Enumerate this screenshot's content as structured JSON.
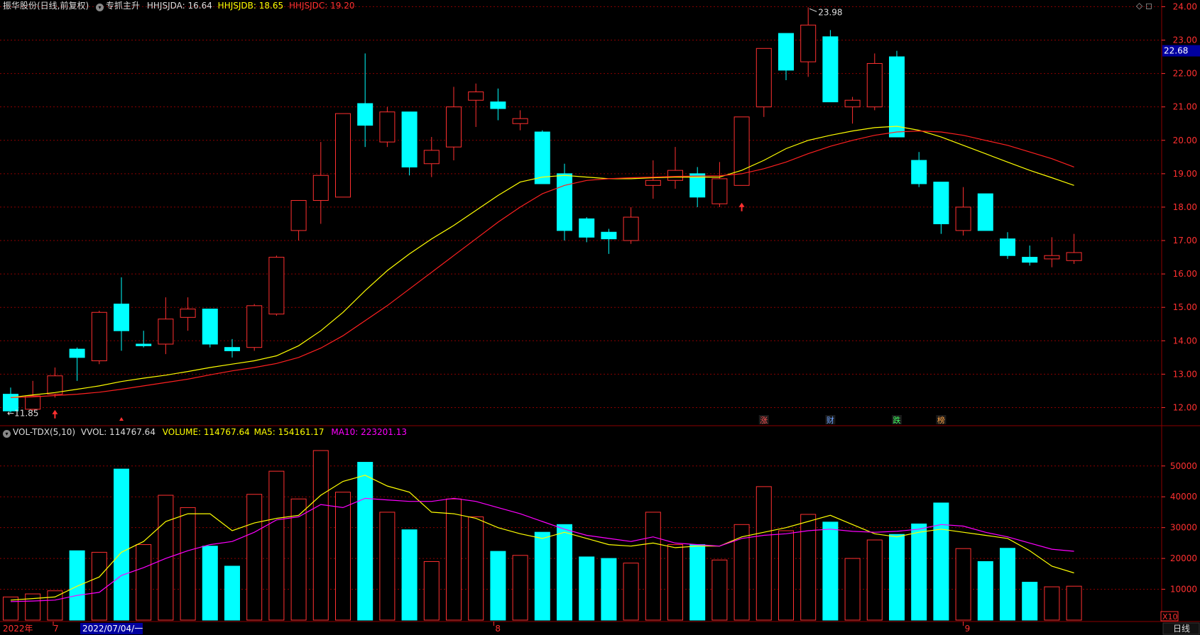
{
  "header": {
    "stock_title": "振华股份(日线,前复权)",
    "indicator_name": "专抓主升",
    "hhjsjda": "HHJSJDA: 16.64",
    "hhjsjdb": "HHJSJDB: 18.65",
    "hhjsjdc": "HHJSJDC: 19.20",
    "top_icons": "◇ ◻"
  },
  "volume_header": {
    "name": "VOL-TDX(5,10)",
    "vvol": "VVOL: 114767.64",
    "volume": "VOLUME: 114767.64",
    "ma5": "MA5: 154161.17",
    "ma10": "MA10: 223201.13"
  },
  "price_axis": {
    "labels": [
      "24.00",
      "23.00",
      "22.00",
      "21.00",
      "20.00",
      "19.00",
      "18.00",
      "17.00",
      "16.00",
      "15.00",
      "14.00",
      "13.00",
      "12.00"
    ],
    "current_price": "22.68"
  },
  "volume_axis": {
    "labels": [
      "50000",
      "40000",
      "30000",
      "20000",
      "10000"
    ],
    "unit": "X10"
  },
  "annotations": {
    "high_label": "23.98",
    "low_label": "11.85",
    "markers": [
      "涨",
      "财",
      "跌",
      "榜"
    ]
  },
  "time_axis": {
    "labels": [
      "2022年",
      "7",
      "2022/07/04/一",
      "8",
      "9"
    ],
    "period_button": "日线"
  },
  "colors": {
    "up": "#ff3030",
    "down": "#00ffff",
    "ma_fast": "#ffff00",
    "ma_slow": "#ff2020",
    "vol_ma10": "#ff00ff",
    "grid": "#8b0000"
  },
  "chart_data": [
    {
      "type": "candlestick",
      "title": "振华股份(日线,前复权)",
      "ylim": [
        11.5,
        24.2
      ],
      "candles": [
        {
          "o": 12.4,
          "h": 12.6,
          "l": 11.85,
          "c": 11.9
        },
        {
          "o": 11.95,
          "h": 12.8,
          "l": 11.9,
          "c": 12.35
        },
        {
          "o": 12.4,
          "h": 13.2,
          "l": 12.3,
          "c": 12.95
        },
        {
          "o": 13.75,
          "h": 13.8,
          "l": 12.8,
          "c": 13.5
        },
        {
          "o": 13.4,
          "h": 14.9,
          "l": 13.3,
          "c": 14.85
        },
        {
          "o": 15.1,
          "h": 15.9,
          "l": 13.7,
          "c": 14.3
        },
        {
          "o": 13.9,
          "h": 14.3,
          "l": 13.8,
          "c": 13.85
        },
        {
          "o": 13.9,
          "h": 15.3,
          "l": 13.6,
          "c": 14.65
        },
        {
          "o": 14.7,
          "h": 15.3,
          "l": 14.3,
          "c": 14.95
        },
        {
          "o": 14.95,
          "h": 14.95,
          "l": 13.8,
          "c": 13.9
        },
        {
          "o": 13.8,
          "h": 14.05,
          "l": 13.5,
          "c": 13.7
        },
        {
          "o": 13.8,
          "h": 15.1,
          "l": 13.7,
          "c": 15.05
        },
        {
          "o": 14.8,
          "h": 16.55,
          "l": 14.75,
          "c": 16.5
        },
        {
          "o": 17.3,
          "h": 18.2,
          "l": 17.0,
          "c": 18.2
        },
        {
          "o": 18.2,
          "h": 19.95,
          "l": 17.5,
          "c": 18.95
        },
        {
          "o": 18.3,
          "h": 20.8,
          "l": 18.3,
          "c": 20.8
        },
        {
          "o": 21.1,
          "h": 22.6,
          "l": 19.8,
          "c": 20.45
        },
        {
          "o": 19.95,
          "h": 21.0,
          "l": 19.8,
          "c": 20.85
        },
        {
          "o": 20.85,
          "h": 20.85,
          "l": 18.95,
          "c": 19.2
        },
        {
          "o": 19.3,
          "h": 20.1,
          "l": 18.9,
          "c": 19.7
        },
        {
          "o": 19.8,
          "h": 21.6,
          "l": 19.4,
          "c": 21.0
        },
        {
          "o": 21.2,
          "h": 21.7,
          "l": 20.4,
          "c": 21.45
        },
        {
          "o": 21.15,
          "h": 21.55,
          "l": 20.6,
          "c": 20.95
        },
        {
          "o": 20.5,
          "h": 20.9,
          "l": 20.3,
          "c": 20.65
        },
        {
          "o": 20.25,
          "h": 20.3,
          "l": 18.7,
          "c": 18.7
        },
        {
          "o": 19.0,
          "h": 19.3,
          "l": 17.0,
          "c": 17.3
        },
        {
          "o": 17.65,
          "h": 17.7,
          "l": 16.95,
          "c": 17.1
        },
        {
          "o": 17.25,
          "h": 17.35,
          "l": 16.6,
          "c": 17.05
        },
        {
          "o": 17.0,
          "h": 18.0,
          "l": 16.9,
          "c": 17.7
        },
        {
          "o": 18.65,
          "h": 19.4,
          "l": 18.25,
          "c": 18.8
        },
        {
          "o": 18.8,
          "h": 19.8,
          "l": 18.55,
          "c": 19.1
        },
        {
          "o": 19.0,
          "h": 19.2,
          "l": 18.0,
          "c": 18.3
        },
        {
          "o": 18.1,
          "h": 19.35,
          "l": 18.0,
          "c": 18.85
        },
        {
          "o": 18.65,
          "h": 20.7,
          "l": 18.65,
          "c": 20.7
        },
        {
          "o": 21.0,
          "h": 22.75,
          "l": 20.7,
          "c": 22.75
        },
        {
          "o": 23.2,
          "h": 23.2,
          "l": 21.8,
          "c": 22.1
        },
        {
          "o": 22.35,
          "h": 23.98,
          "l": 21.9,
          "c": 23.45
        },
        {
          "o": 23.1,
          "h": 23.3,
          "l": 21.15,
          "c": 21.15
        },
        {
          "o": 21.0,
          "h": 21.3,
          "l": 20.5,
          "c": 21.2
        },
        {
          "o": 21.0,
          "h": 22.6,
          "l": 20.9,
          "c": 22.3
        },
        {
          "o": 22.5,
          "h": 22.68,
          "l": 20.1,
          "c": 20.1
        },
        {
          "o": 19.4,
          "h": 19.65,
          "l": 18.6,
          "c": 18.7
        },
        {
          "o": 18.75,
          "h": 18.75,
          "l": 17.2,
          "c": 17.5
        },
        {
          "o": 17.3,
          "h": 18.6,
          "l": 17.15,
          "c": 18.0
        },
        {
          "o": 18.4,
          "h": 18.4,
          "l": 17.3,
          "c": 17.3
        },
        {
          "o": 17.05,
          "h": 17.25,
          "l": 16.45,
          "c": 16.55
        },
        {
          "o": 16.5,
          "h": 16.85,
          "l": 16.25,
          "c": 16.35
        },
        {
          "o": 16.45,
          "h": 17.1,
          "l": 16.2,
          "c": 16.55
        },
        {
          "o": 16.4,
          "h": 17.2,
          "l": 16.3,
          "c": 16.64
        }
      ],
      "lines": [
        {
          "name": "HHJSJDB",
          "color": "#ffff00",
          "values": [
            12.3,
            12.38,
            12.45,
            12.55,
            12.65,
            12.78,
            12.88,
            12.97,
            13.08,
            13.2,
            13.3,
            13.4,
            13.55,
            13.85,
            14.3,
            14.85,
            15.5,
            16.1,
            16.6,
            17.05,
            17.45,
            17.9,
            18.35,
            18.75,
            18.9,
            18.95,
            18.9,
            18.85,
            18.85,
            18.88,
            18.9,
            18.9,
            18.9,
            19.1,
            19.4,
            19.75,
            20.0,
            20.15,
            20.28,
            20.38,
            20.42,
            20.3,
            20.1,
            19.85,
            19.6,
            19.35,
            19.1,
            18.88,
            18.65
          ]
        },
        {
          "name": "HHJSJDC",
          "color": "#ff2020",
          "values": [
            12.3,
            12.32,
            12.36,
            12.4,
            12.46,
            12.55,
            12.65,
            12.75,
            12.85,
            12.98,
            13.1,
            13.2,
            13.32,
            13.5,
            13.78,
            14.15,
            14.6,
            15.05,
            15.55,
            16.05,
            16.55,
            17.05,
            17.55,
            18.0,
            18.4,
            18.65,
            18.8,
            18.85,
            18.88,
            18.9,
            18.92,
            18.93,
            18.94,
            19.0,
            19.15,
            19.35,
            19.6,
            19.82,
            20.0,
            20.15,
            20.25,
            20.28,
            20.25,
            20.15,
            20.0,
            19.85,
            19.65,
            19.45,
            19.2
          ]
        }
      ]
    },
    {
      "type": "bar",
      "title": "VOL-TDX(5,10)",
      "ylim": [
        0,
        58000
      ],
      "values": [
        7500,
        8500,
        9500,
        22500,
        22000,
        49000,
        24500,
        40500,
        36500,
        24000,
        17500,
        40800,
        48300,
        39300,
        55000,
        41500,
        51200,
        35000,
        29300,
        19000,
        39300,
        33500,
        22300,
        21000,
        28500,
        31000,
        20500,
        20000,
        18500,
        35000,
        24500,
        24500,
        19500,
        31000,
        43300,
        29000,
        34300,
        31800,
        20000,
        26000,
        27800,
        31200,
        38000,
        23200,
        19000,
        23300,
        12300,
        10800,
        11000
      ],
      "up": [
        true,
        true,
        true,
        false,
        true,
        false,
        true,
        true,
        true,
        false,
        false,
        true,
        true,
        true,
        true,
        true,
        false,
        true,
        false,
        true,
        true,
        true,
        false,
        true,
        false,
        false,
        false,
        false,
        true,
        true,
        true,
        false,
        true,
        true,
        true,
        true,
        true,
        false,
        true,
        true,
        false,
        false,
        false,
        true,
        false,
        false,
        false,
        true,
        true
      ],
      "lines": [
        {
          "name": "MA5",
          "color": "#ffff00",
          "values": [
            6500,
            7000,
            7500,
            11000,
            14000,
            22000,
            25500,
            32000,
            34500,
            34500,
            29000,
            31500,
            33000,
            34000,
            40500,
            45000,
            47000,
            43500,
            41500,
            35000,
            34500,
            33000,
            30000,
            28000,
            26500,
            28500,
            26500,
            24500,
            24000,
            25000,
            23500,
            24000,
            24000,
            27000,
            28500,
            30000,
            32000,
            34000,
            31000,
            28000,
            27000,
            28500,
            29500,
            28500,
            27500,
            26500,
            22500,
            17500,
            15300
          ]
        },
        {
          "name": "MA10",
          "color": "#ff00ff",
          "values": [
            6000,
            6200,
            6500,
            8000,
            9000,
            14500,
            17000,
            20000,
            22500,
            24500,
            25500,
            28500,
            32500,
            33500,
            37500,
            36500,
            39500,
            39000,
            38500,
            38500,
            39500,
            38500,
            36500,
            34500,
            32000,
            29500,
            27500,
            26500,
            25500,
            27000,
            25000,
            24500,
            24000,
            26500,
            27500,
            28000,
            29000,
            29500,
            28800,
            28500,
            28800,
            29500,
            31000,
            30500,
            28500,
            27000,
            25000,
            23000,
            22320
          ]
        }
      ]
    }
  ]
}
